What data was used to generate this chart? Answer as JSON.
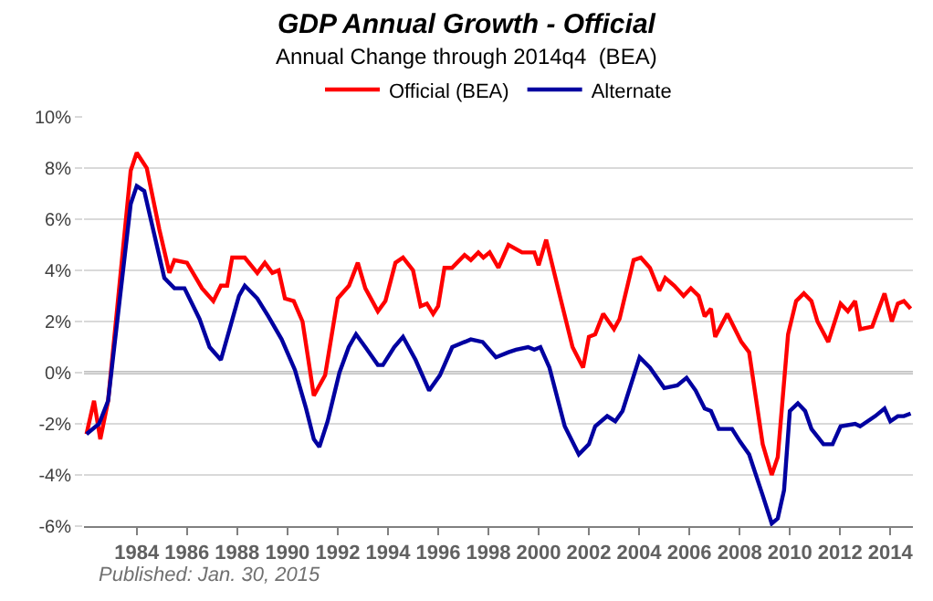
{
  "chart_data": {
    "type": "line",
    "title": "GDP Annual Growth - Official",
    "subtitle": "Annual Change through 2014q4  (BEA)",
    "annotations": [
      "Published: Jan. 30, 2015"
    ],
    "xlim": [
      1981.9,
      2014.9
    ],
    "xticks": [
      1984,
      1986,
      1988,
      1990,
      1992,
      1994,
      1996,
      1998,
      2000,
      2002,
      2004,
      2006,
      2008,
      2010,
      2012,
      2014
    ],
    "ylim": [
      -6,
      10
    ],
    "yticks": [
      {
        "value": -6,
        "label": "-6%"
      },
      {
        "value": -4,
        "label": "-4%"
      },
      {
        "value": -2,
        "label": "-2%"
      },
      {
        "value": 0,
        "label": "0%"
      },
      {
        "value": 2,
        "label": "2%"
      },
      {
        "value": 4,
        "label": "4%"
      },
      {
        "value": 6,
        "label": "6%"
      },
      {
        "value": 8,
        "label": "8%"
      },
      {
        "value": 10,
        "label": "10%"
      }
    ],
    "grid": "y",
    "legend": "top",
    "marker": "none",
    "line_style": "solid",
    "ref_lines": [
      {
        "axis": "y",
        "value": 0,
        "label": null,
        "color": "#808080"
      }
    ],
    "series": [
      {
        "name": "Official (BEA)",
        "color": "#ff0000",
        "x": [
          1982.0,
          1982.3,
          1982.55,
          1982.86,
          1983.76,
          1984.0,
          1984.4,
          1984.9,
          1985.3,
          1985.5,
          1986.0,
          1986.6,
          1987.05,
          1987.35,
          1987.6,
          1987.8,
          1988.3,
          1988.8,
          1989.1,
          1989.4,
          1989.65,
          1989.9,
          1990.25,
          1990.6,
          1991.05,
          1991.5,
          1992.0,
          1992.45,
          1992.8,
          1993.1,
          1993.6,
          1993.9,
          1994.3,
          1994.6,
          1995.0,
          1995.3,
          1995.55,
          1995.8,
          1996.0,
          1996.25,
          1996.55,
          1997.05,
          1997.3,
          1997.6,
          1997.8,
          1998.05,
          1998.4,
          1998.8,
          1999.34,
          1999.83,
          2000.0,
          2000.3,
          2000.87,
          2001.35,
          2001.77,
          2002.0,
          2002.25,
          2002.57,
          2003.0,
          2003.22,
          2003.78,
          2004.07,
          2004.43,
          2004.8,
          2005.04,
          2005.4,
          2005.77,
          2006.06,
          2006.37,
          2006.61,
          2006.86,
          2007.03,
          2007.51,
          2008.07,
          2008.38,
          2008.92,
          2009.28,
          2009.52,
          2009.93,
          2010.25,
          2010.56,
          2010.86,
          2011.1,
          2011.53,
          2012.02,
          2012.31,
          2012.6,
          2012.8,
          2013.28,
          2013.77,
          2014.06,
          2014.3,
          2014.54,
          2014.81
        ],
        "values": [
          -2.4,
          -1.1,
          -2.6,
          -1.1,
          7.9,
          8.6,
          8.0,
          5.6,
          3.9,
          4.4,
          4.3,
          3.3,
          2.8,
          3.4,
          3.4,
          4.5,
          4.5,
          3.9,
          4.3,
          3.9,
          4.0,
          2.9,
          2.8,
          2.0,
          -0.9,
          -0.1,
          2.9,
          3.4,
          4.3,
          3.3,
          2.4,
          2.8,
          4.3,
          4.5,
          4.0,
          2.6,
          2.7,
          2.3,
          2.6,
          4.1,
          4.1,
          4.6,
          4.4,
          4.7,
          4.5,
          4.7,
          4.1,
          5.0,
          4.7,
          4.7,
          4.2,
          5.2,
          2.9,
          1.0,
          0.2,
          1.4,
          1.5,
          2.3,
          1.7,
          2.1,
          4.4,
          4.5,
          4.1,
          3.2,
          3.7,
          3.4,
          3.0,
          3.3,
          3.0,
          2.2,
          2.5,
          1.4,
          2.3,
          1.2,
          0.8,
          -2.8,
          -4.0,
          -3.3,
          1.5,
          2.8,
          3.1,
          2.8,
          2.0,
          1.2,
          2.7,
          2.4,
          2.8,
          1.7,
          1.8,
          3.1,
          2.0,
          2.7,
          2.8,
          2.5
        ]
      },
      {
        "name": "Alternate",
        "color": "#0000a0",
        "x": [
          1982.0,
          1982.5,
          1982.86,
          1983.76,
          1984.0,
          1984.3,
          1985.1,
          1985.5,
          1985.9,
          1986.5,
          1986.9,
          1987.35,
          1988.07,
          1988.3,
          1988.8,
          1989.24,
          1989.77,
          1990.3,
          1990.74,
          1991.05,
          1991.27,
          1991.6,
          1992.07,
          1992.44,
          1992.73,
          1993.1,
          1993.6,
          1993.8,
          1994.25,
          1994.6,
          1995.1,
          1995.64,
          1996.07,
          1996.56,
          1997.3,
          1997.77,
          1998.3,
          1998.8,
          1999.1,
          1999.58,
          1999.83,
          2000.07,
          2000.43,
          2001.04,
          2001.6,
          2002.0,
          2002.25,
          2002.73,
          2003.05,
          2003.34,
          2004.02,
          2004.43,
          2005.0,
          2005.52,
          2005.89,
          2006.25,
          2006.61,
          2006.86,
          2007.17,
          2007.7,
          2008.02,
          2008.38,
          2008.92,
          2009.28,
          2009.52,
          2009.77,
          2010.0,
          2010.32,
          2010.61,
          2010.86,
          2011.34,
          2011.7,
          2012.02,
          2012.6,
          2012.8,
          2013.4,
          2013.77,
          2014.0,
          2014.3,
          2014.54,
          2014.81
        ],
        "values": [
          -2.4,
          -2.0,
          -1.1,
          6.6,
          7.3,
          7.1,
          3.7,
          3.3,
          3.3,
          2.1,
          1.0,
          0.5,
          3.0,
          3.4,
          2.9,
          2.2,
          1.3,
          0.1,
          -1.4,
          -2.6,
          -2.9,
          -1.9,
          0.0,
          1.0,
          1.5,
          1.0,
          0.3,
          0.3,
          1.0,
          1.4,
          0.5,
          -0.7,
          -0.1,
          1.0,
          1.3,
          1.2,
          0.6,
          0.8,
          0.9,
          1.0,
          0.9,
          1.0,
          0.2,
          -2.1,
          -3.2,
          -2.8,
          -2.1,
          -1.7,
          -1.9,
          -1.5,
          0.6,
          0.2,
          -0.6,
          -0.5,
          -0.2,
          -0.7,
          -1.4,
          -1.5,
          -2.2,
          -2.2,
          -2.7,
          -3.2,
          -4.8,
          -5.9,
          -5.7,
          -4.6,
          -1.5,
          -1.2,
          -1.5,
          -2.2,
          -2.8,
          -2.8,
          -2.1,
          -2.0,
          -2.1,
          -1.7,
          -1.4,
          -1.9,
          -1.7,
          -1.7,
          -1.6
        ]
      }
    ]
  }
}
